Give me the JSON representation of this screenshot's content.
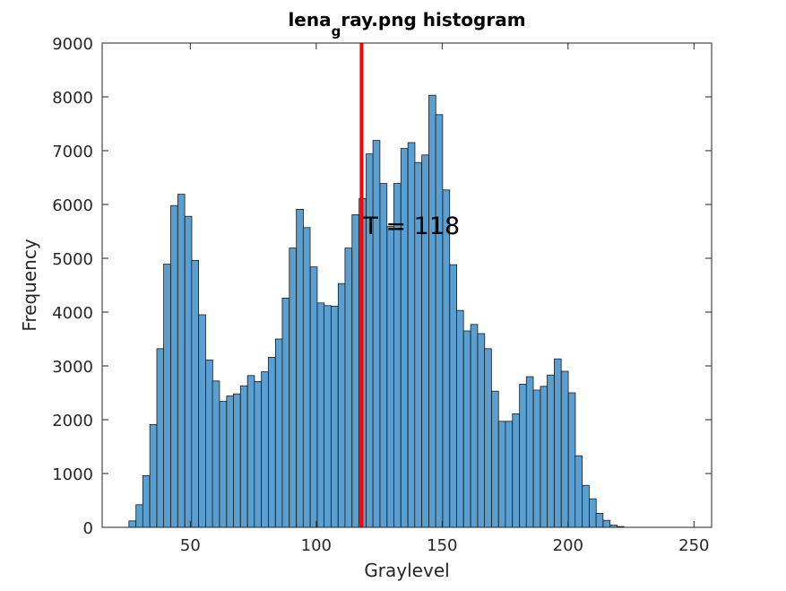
{
  "chart_data": {
    "type": "bar",
    "title_main": "lena",
    "title_sub": "g",
    "title_rest": "ray.png histogram",
    "xlabel": "Graylevel",
    "ylabel": "Frequency",
    "xlim": [
      15,
      257
    ],
    "ylim": [
      0,
      9000
    ],
    "xticks": [
      50,
      100,
      150,
      200,
      250
    ],
    "yticks": [
      0,
      1000,
      2000,
      3000,
      4000,
      5000,
      6000,
      7000,
      8000,
      9000
    ],
    "bin_width": 2.77,
    "bar_color": "#5a9fd0",
    "edge_color": "#1a1a1a",
    "threshold": {
      "x": 118,
      "label": "T = 118",
      "color": "#ff0000"
    },
    "bins": [
      {
        "x": 27.0,
        "y": 120
      },
      {
        "x": 29.8,
        "y": 420
      },
      {
        "x": 32.5,
        "y": 960
      },
      {
        "x": 35.3,
        "y": 1910
      },
      {
        "x": 38.1,
        "y": 3320
      },
      {
        "x": 40.8,
        "y": 4890
      },
      {
        "x": 43.6,
        "y": 5980
      },
      {
        "x": 46.4,
        "y": 6190
      },
      {
        "x": 49.2,
        "y": 5780
      },
      {
        "x": 51.9,
        "y": 4960
      },
      {
        "x": 54.7,
        "y": 3950
      },
      {
        "x": 57.5,
        "y": 3110
      },
      {
        "x": 60.2,
        "y": 2720
      },
      {
        "x": 63.0,
        "y": 2340
      },
      {
        "x": 65.8,
        "y": 2440
      },
      {
        "x": 68.5,
        "y": 2480
      },
      {
        "x": 71.3,
        "y": 2630
      },
      {
        "x": 74.1,
        "y": 2820
      },
      {
        "x": 76.8,
        "y": 2710
      },
      {
        "x": 79.6,
        "y": 2890
      },
      {
        "x": 82.4,
        "y": 3160
      },
      {
        "x": 85.2,
        "y": 3500
      },
      {
        "x": 87.9,
        "y": 4260
      },
      {
        "x": 90.7,
        "y": 5190
      },
      {
        "x": 93.5,
        "y": 5910
      },
      {
        "x": 96.2,
        "y": 5570
      },
      {
        "x": 99.0,
        "y": 4840
      },
      {
        "x": 101.8,
        "y": 4170
      },
      {
        "x": 104.5,
        "y": 4120
      },
      {
        "x": 107.3,
        "y": 4110
      },
      {
        "x": 110.1,
        "y": 4530
      },
      {
        "x": 112.8,
        "y": 5190
      },
      {
        "x": 115.6,
        "y": 5810
      },
      {
        "x": 118.4,
        "y": 6110
      },
      {
        "x": 121.2,
        "y": 6940
      },
      {
        "x": 123.9,
        "y": 7190
      },
      {
        "x": 126.7,
        "y": 6390
      },
      {
        "x": 129.5,
        "y": 5590
      },
      {
        "x": 132.2,
        "y": 6390
      },
      {
        "x": 135.0,
        "y": 7040
      },
      {
        "x": 137.8,
        "y": 7150
      },
      {
        "x": 140.5,
        "y": 6780
      },
      {
        "x": 143.3,
        "y": 6920
      },
      {
        "x": 146.1,
        "y": 8030
      },
      {
        "x": 148.8,
        "y": 7670
      },
      {
        "x": 151.6,
        "y": 6270
      },
      {
        "x": 154.4,
        "y": 4880
      },
      {
        "x": 157.1,
        "y": 4030
      },
      {
        "x": 159.9,
        "y": 3650
      },
      {
        "x": 162.7,
        "y": 3770
      },
      {
        "x": 165.5,
        "y": 3600
      },
      {
        "x": 168.2,
        "y": 3320
      },
      {
        "x": 171.0,
        "y": 2530
      },
      {
        "x": 173.8,
        "y": 1970
      },
      {
        "x": 176.5,
        "y": 1970
      },
      {
        "x": 179.3,
        "y": 2110
      },
      {
        "x": 182.1,
        "y": 2660
      },
      {
        "x": 184.8,
        "y": 2800
      },
      {
        "x": 187.6,
        "y": 2550
      },
      {
        "x": 190.4,
        "y": 2620
      },
      {
        "x": 193.1,
        "y": 2830
      },
      {
        "x": 195.9,
        "y": 3130
      },
      {
        "x": 198.7,
        "y": 2900
      },
      {
        "x": 201.5,
        "y": 2500
      },
      {
        "x": 204.2,
        "y": 1330
      },
      {
        "x": 207.0,
        "y": 780
      },
      {
        "x": 209.8,
        "y": 530
      },
      {
        "x": 212.5,
        "y": 260
      },
      {
        "x": 215.3,
        "y": 130
      },
      {
        "x": 218.1,
        "y": 40
      },
      {
        "x": 220.8,
        "y": 15
      }
    ]
  }
}
